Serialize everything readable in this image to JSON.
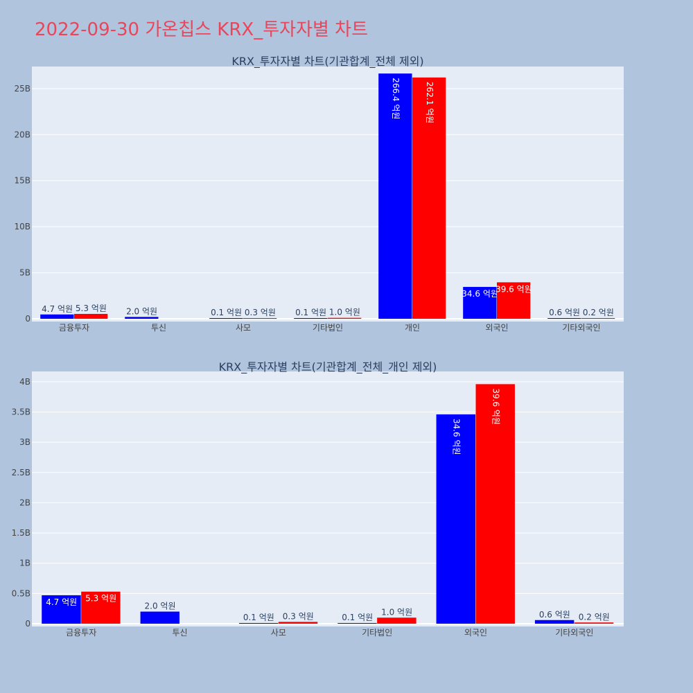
{
  "page": {
    "title": "2022-09-30 가온칩스 KRX_투자자별 차트"
  },
  "colors": {
    "background": "#b0c4de",
    "plot_background": "#e5ecf6",
    "series_1": "#0000ff",
    "series_2": "#ff0000",
    "title": "#e8465a"
  },
  "chart_data": [
    {
      "type": "bar",
      "title": "KRX_투자자별 차트(기관합계_전체 제외)",
      "categories": [
        "금융투자",
        "투신",
        "사모",
        "기타법인",
        "개인",
        "외국인",
        "기타외국인"
      ],
      "series": [
        {
          "values": [
            0.47,
            0.2,
            0.01,
            0.01,
            26.64,
            3.46,
            0.06
          ],
          "labels": [
            "4.7 억원",
            "2.0 억원",
            "0.1 억원",
            "0.1 억원",
            "266.4 억원",
            "34.6 억원",
            "0.6 억원"
          ]
        },
        {
          "values": [
            0.53,
            0.0,
            0.03,
            0.1,
            26.21,
            3.96,
            0.02
          ],
          "labels": [
            "5.3 억원",
            "",
            "0.3 억원",
            "1.0 억원",
            "262.1 억원",
            "39.6 억원",
            "0.2 억원"
          ]
        }
      ],
      "yticks": [
        0,
        5,
        10,
        15,
        20,
        25
      ],
      "ytick_labels": [
        "0",
        "5B",
        "10B",
        "15B",
        "20B",
        "25B"
      ],
      "ylim": [
        0,
        27.4
      ],
      "grid": true
    },
    {
      "type": "bar",
      "title": "KRX_투자자별 차트(기관합계_전체_개인 제외)",
      "categories": [
        "금융투자",
        "투신",
        "사모",
        "기타법인",
        "외국인",
        "기타외국인"
      ],
      "series": [
        {
          "values": [
            0.47,
            0.2,
            0.01,
            0.01,
            3.46,
            0.06
          ],
          "labels": [
            "4.7 억원",
            "2.0 억원",
            "0.1 억원",
            "0.1 억원",
            "34.6 억원",
            "0.6 억원"
          ]
        },
        {
          "values": [
            0.53,
            0.0,
            0.03,
            0.1,
            3.96,
            0.02
          ],
          "labels": [
            "5.3 억원",
            "",
            "0.3 억원",
            "1.0 억원",
            "39.6 억원",
            "0.2 억원"
          ]
        }
      ],
      "yticks": [
        0,
        0.5,
        1,
        1.5,
        2,
        2.5,
        3,
        3.5,
        4
      ],
      "ytick_labels": [
        "0",
        "0.5B",
        "1B",
        "1.5B",
        "2B",
        "2.5B",
        "3B",
        "3.5B",
        "4B"
      ],
      "ylim": [
        0,
        4.17
      ],
      "grid": true
    }
  ]
}
